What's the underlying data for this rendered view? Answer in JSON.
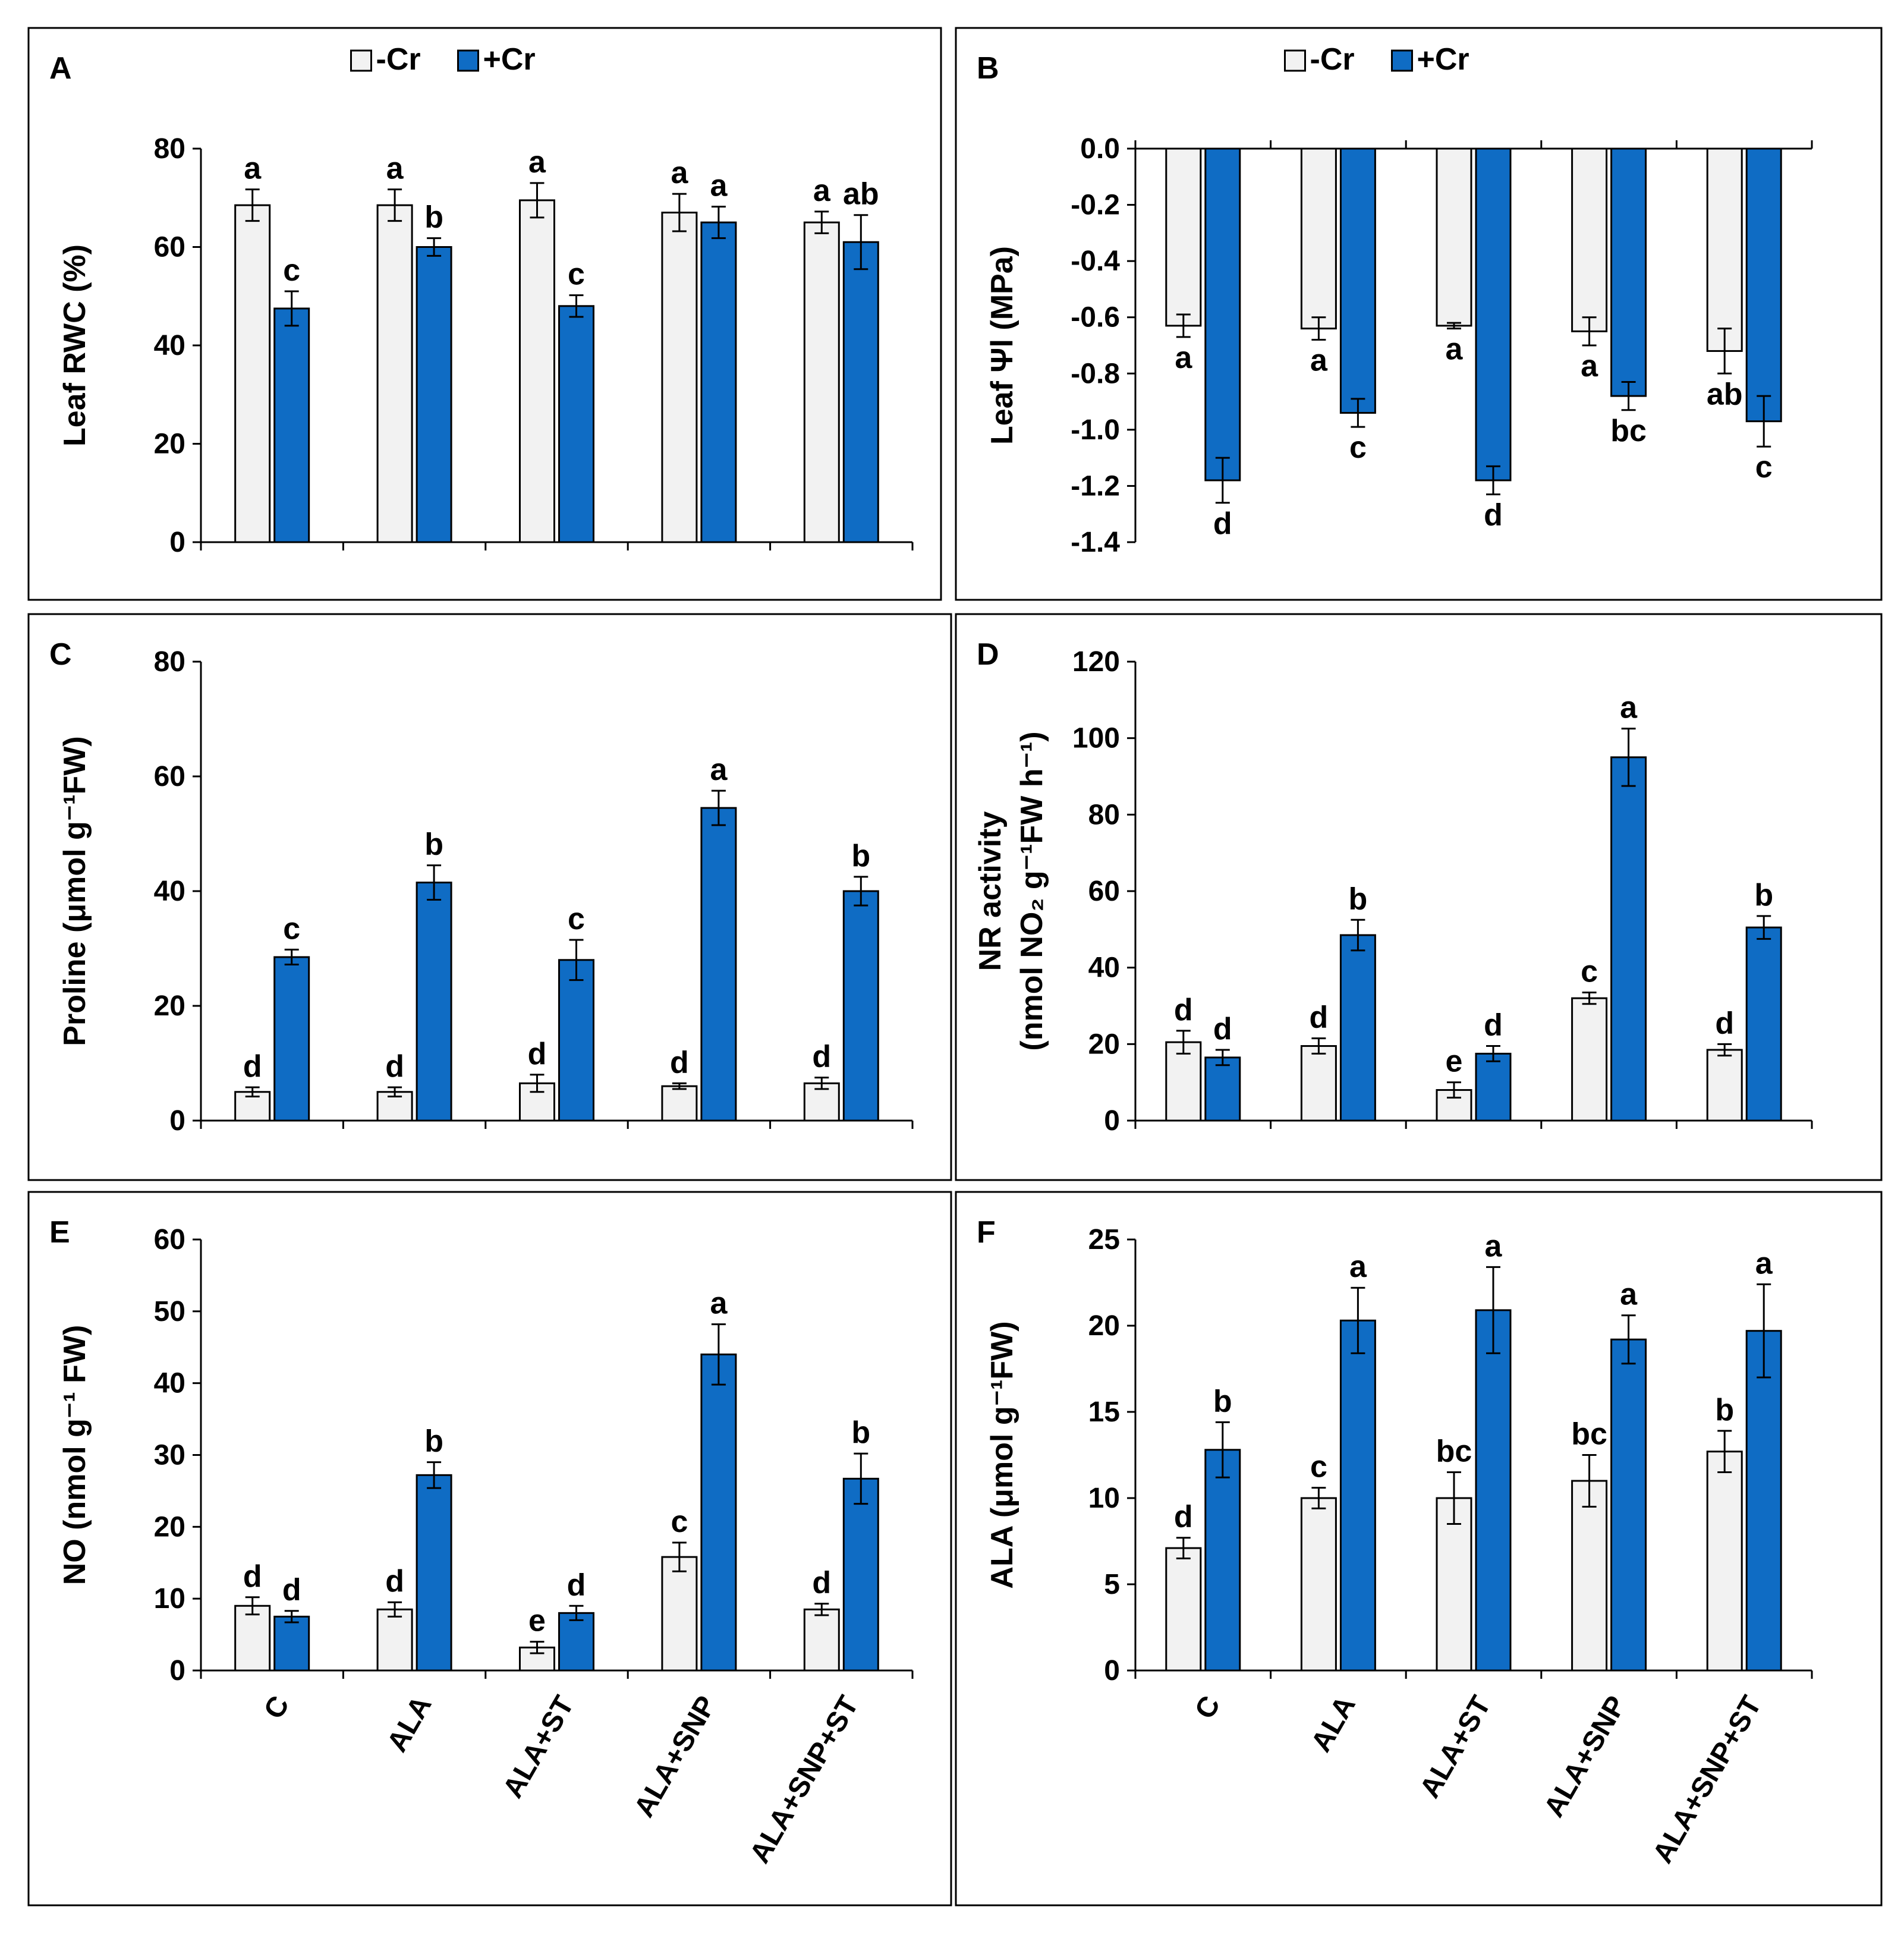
{
  "legend": [
    {
      "name": "-Cr",
      "color": "#f2f2f2"
    },
    {
      "name": "+Cr",
      "color": "#0f6cc4"
    }
  ],
  "colors": {
    "control": "#f2f2f2",
    "chromium": "#0f6cc4",
    "outline": "#000000"
  },
  "chart_data": [
    {
      "panel": "A",
      "type": "bar",
      "categories": [
        "C",
        "ALA",
        "ALA+ST",
        "ALA+SNP",
        "ALA+SNP+ST"
      ],
      "ylabel": "Leaf RWC (%)",
      "ylim": [
        0,
        80
      ],
      "yticks": [
        0,
        20,
        40,
        60,
        80
      ],
      "tick_format": "0",
      "show_legend": true,
      "show_xlabels": false,
      "series": [
        {
          "name": "-Cr",
          "values": [
            68.5,
            68.5,
            69.5,
            67,
            65
          ],
          "errors": [
            3.2,
            3.2,
            3.5,
            3.8,
            2.2
          ],
          "letters": [
            "a",
            "a",
            "a",
            "a",
            "a"
          ]
        },
        {
          "name": "+Cr",
          "values": [
            47.5,
            60,
            48,
            65,
            61
          ],
          "errors": [
            3.5,
            1.8,
            2.2,
            3.2,
            5.5
          ],
          "letters": [
            "c",
            "b",
            "c",
            "a",
            "ab"
          ]
        }
      ]
    },
    {
      "panel": "B",
      "type": "bar",
      "categories": [
        "C",
        "ALA",
        "ALA+ST",
        "ALA+SNP",
        "ALA+SNP+ST"
      ],
      "ylabel": "Leaf Ψl (MPa)",
      "ylim": [
        -1.4,
        0
      ],
      "yticks": [
        0,
        -0.2,
        -0.4,
        -0.6,
        -0.8,
        -1.0,
        -1.2,
        -1.4
      ],
      "tick_format": "0.0",
      "show_legend": true,
      "show_xlabels": false,
      "series": [
        {
          "name": "-Cr",
          "values": [
            -0.63,
            -0.64,
            -0.63,
            -0.65,
            -0.72
          ],
          "errors": [
            0.04,
            0.04,
            0.01,
            0.05,
            0.08
          ],
          "letters": [
            "a",
            "a",
            "a",
            "a",
            "ab"
          ]
        },
        {
          "name": "+Cr",
          "values": [
            -1.18,
            -0.94,
            -1.18,
            -0.88,
            -0.97
          ],
          "errors": [
            0.08,
            0.05,
            0.05,
            0.05,
            0.09
          ],
          "letters": [
            "d",
            "c",
            "d",
            "bc",
            "c"
          ]
        }
      ]
    },
    {
      "panel": "C",
      "type": "bar",
      "categories": [
        "C",
        "ALA",
        "ALA+ST",
        "ALA+SNP",
        "ALA+SNP+ST"
      ],
      "ylabel": "Proline (μmol g⁻¹FW)",
      "ylim": [
        0,
        80
      ],
      "yticks": [
        0,
        20,
        40,
        60,
        80
      ],
      "tick_format": "0",
      "show_legend": false,
      "show_xlabels": false,
      "series": [
        {
          "name": "-Cr",
          "values": [
            5,
            5,
            6.5,
            6,
            6.5
          ],
          "errors": [
            0.8,
            0.8,
            1.5,
            0.5,
            1.0
          ],
          "letters": [
            "d",
            "d",
            "d",
            "d",
            "d"
          ]
        },
        {
          "name": "+Cr",
          "values": [
            28.5,
            41.5,
            28,
            54.5,
            40
          ],
          "errors": [
            1.3,
            3.0,
            3.5,
            3.0,
            2.5
          ],
          "letters": [
            "c",
            "b",
            "c",
            "a",
            "b"
          ]
        }
      ]
    },
    {
      "panel": "D",
      "type": "bar",
      "categories": [
        "C",
        "ALA",
        "ALA+ST",
        "ALA+SNP",
        "ALA+SNP+ST"
      ],
      "ylabel": "NR activity",
      "ylabel2": "(nmol NO₂ g⁻¹FW h⁻¹)",
      "ylim": [
        0,
        120
      ],
      "yticks": [
        0,
        20,
        40,
        60,
        80,
        100,
        120
      ],
      "tick_format": "0",
      "show_legend": false,
      "show_xlabels": false,
      "series": [
        {
          "name": "-Cr",
          "values": [
            20.5,
            19.5,
            8,
            32,
            18.5
          ],
          "errors": [
            3.0,
            2.0,
            2.0,
            1.5,
            1.5
          ],
          "letters": [
            "d",
            "d",
            "e",
            "c",
            "d"
          ]
        },
        {
          "name": "+Cr",
          "values": [
            16.5,
            48.5,
            17.5,
            95,
            50.5
          ],
          "errors": [
            2.0,
            4.0,
            2.0,
            7.5,
            3.0
          ],
          "letters": [
            "d",
            "b",
            "d",
            "a",
            "b"
          ]
        }
      ]
    },
    {
      "panel": "E",
      "type": "bar",
      "categories": [
        "C",
        "ALA",
        "ALA+ST",
        "ALA+SNP",
        "ALA+SNP+ST"
      ],
      "ylabel": "NO (nmol g⁻¹ FW)",
      "ylim": [
        0,
        60
      ],
      "yticks": [
        0,
        10,
        20,
        30,
        40,
        50,
        60
      ],
      "tick_format": "0",
      "show_legend": false,
      "show_xlabels": true,
      "series": [
        {
          "name": "-Cr",
          "values": [
            9,
            8.5,
            3.2,
            15.8,
            8.5
          ],
          "errors": [
            1.2,
            1.0,
            0.8,
            2.0,
            0.8
          ],
          "letters": [
            "d",
            "d",
            "e",
            "c",
            "d"
          ]
        },
        {
          "name": "+Cr",
          "values": [
            7.5,
            27.2,
            8,
            44,
            26.7
          ],
          "errors": [
            0.8,
            1.8,
            1.0,
            4.2,
            3.5
          ],
          "letters": [
            "d",
            "b",
            "d",
            "a",
            "b"
          ]
        }
      ]
    },
    {
      "panel": "F",
      "type": "bar",
      "categories": [
        "C",
        "ALA",
        "ALA+ST",
        "ALA+SNP",
        "ALA+SNP+ST"
      ],
      "ylabel": "ALA (μmol g⁻¹FW)",
      "ylim": [
        0,
        25
      ],
      "yticks": [
        0,
        5,
        10,
        15,
        20,
        25
      ],
      "tick_format": "0",
      "show_legend": false,
      "show_xlabels": true,
      "series": [
        {
          "name": "-Cr",
          "values": [
            7.1,
            10,
            10,
            11,
            12.7
          ],
          "errors": [
            0.6,
            0.6,
            1.5,
            1.5,
            1.2
          ],
          "letters": [
            "d",
            "c",
            "bc",
            "bc",
            "b"
          ]
        },
        {
          "name": "+Cr",
          "values": [
            12.8,
            20.3,
            20.9,
            19.2,
            19.7
          ],
          "errors": [
            1.6,
            1.9,
            2.5,
            1.4,
            2.7
          ],
          "letters": [
            "b",
            "a",
            "a",
            "a",
            "a"
          ]
        }
      ]
    }
  ]
}
